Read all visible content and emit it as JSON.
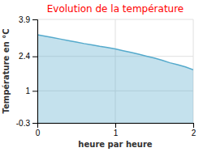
{
  "chart_data": {
    "type": "area",
    "title": "Evolution de la température",
    "x_label": "heure par heure",
    "y_label": "Température en °C",
    "x": [
      0.0,
      0.1,
      0.2,
      0.3,
      0.4,
      0.5,
      0.6,
      0.7,
      0.8,
      0.9,
      1.0,
      1.1,
      1.2,
      1.3,
      1.4,
      1.5,
      1.6,
      1.7,
      1.8,
      1.9,
      2.0
    ],
    "values": [
      3.28,
      3.22,
      3.16,
      3.1,
      3.04,
      2.98,
      2.92,
      2.87,
      2.81,
      2.76,
      2.7,
      2.63,
      2.56,
      2.49,
      2.41,
      2.33,
      2.24,
      2.14,
      2.06,
      1.97,
      1.86
    ],
    "color": "#55aacc",
    "xlim": [
      0,
      2
    ],
    "xticks": [
      0,
      1,
      2
    ],
    "ylim": [
      -0.3,
      3.9
    ],
    "yticks": [
      -0.3,
      1,
      2.4,
      3.9
    ],
    "grid": true
  }
}
